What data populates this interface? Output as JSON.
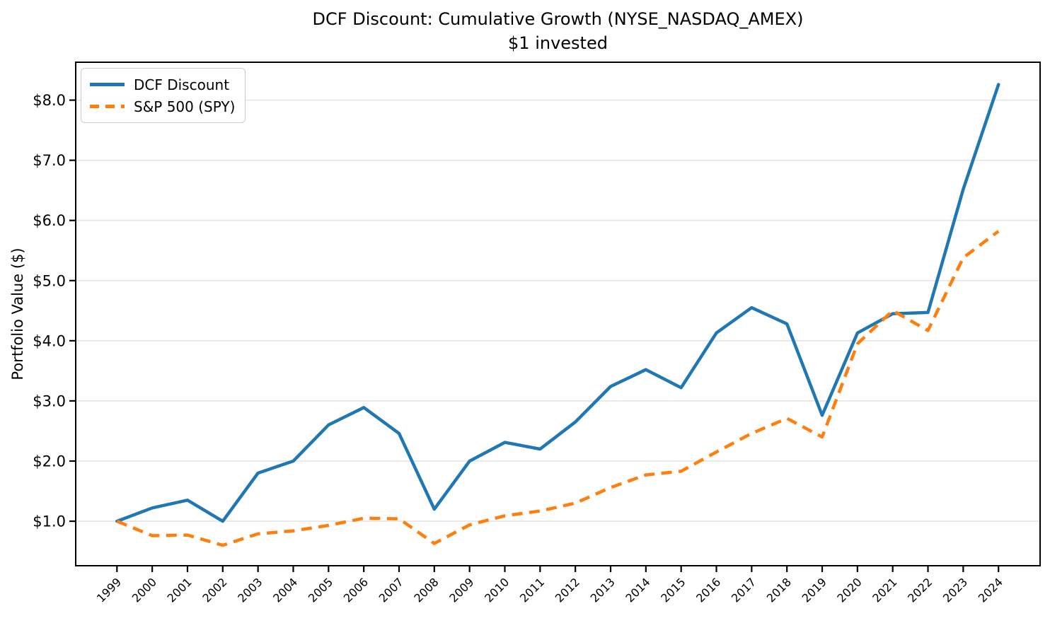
{
  "figure": {
    "title": "DCF Discount: Cumulative Growth (NYSE_NASDAQ_AMEX)",
    "subtitle": "$1 invested",
    "ylabel": "Portfolio Value ($)"
  },
  "legend": {
    "position": "upper left",
    "items": [
      {
        "label": "DCF Discount",
        "color": "#1f77b4",
        "style": "solid"
      },
      {
        "label": "S&P 500 (SPY)",
        "color": "#ff7f0e",
        "style": "dashed"
      }
    ]
  },
  "chart_data": {
    "type": "line",
    "title": "DCF Discount: Cumulative Growth (NYSE_NASDAQ_AMEX)",
    "subtitle": "$1 invested",
    "xlabel": "",
    "ylabel": "Portfolio Value ($)",
    "x": [
      1999,
      2000,
      2001,
      2002,
      2003,
      2004,
      2005,
      2006,
      2007,
      2008,
      2009,
      2010,
      2011,
      2012,
      2013,
      2014,
      2015,
      2016,
      2017,
      2018,
      2019,
      2020,
      2021,
      2022,
      2023,
      2024
    ],
    "series": [
      {
        "name": "DCF Discount",
        "color": "#1f77b4",
        "line_style": "solid",
        "values": [
          1.0,
          1.22,
          1.35,
          1.0,
          1.8,
          2.0,
          2.6,
          2.89,
          2.46,
          1.2,
          2.0,
          2.31,
          2.2,
          2.65,
          3.24,
          3.52,
          3.22,
          4.13,
          4.55,
          4.28,
          2.76,
          4.13,
          4.45,
          4.47,
          6.52,
          8.26
        ]
      },
      {
        "name": "S&P 500 (SPY)",
        "color": "#ff7f0e",
        "line_style": "dashed",
        "values": [
          1.0,
          0.76,
          0.77,
          0.6,
          0.79,
          0.84,
          0.93,
          1.05,
          1.04,
          0.63,
          0.94,
          1.09,
          1.17,
          1.3,
          1.56,
          1.77,
          1.83,
          2.15,
          2.46,
          2.71,
          2.4,
          3.95,
          4.5,
          4.17,
          5.38,
          5.82
        ]
      }
    ],
    "xlim": [
      1997.83,
      2025.18
    ],
    "ylim": [
      0.26,
      8.63
    ],
    "yticks": [
      1,
      2,
      3,
      4,
      5,
      6,
      7,
      8
    ],
    "ytick_labels": [
      "$1.0",
      "$2.0",
      "$3.0",
      "$4.0",
      "$5.0",
      "$6.0",
      "$7.0",
      "$8.0"
    ],
    "xtick_labels": [
      "1999",
      "2000",
      "2001",
      "2002",
      "2003",
      "2004",
      "2005",
      "2006",
      "2007",
      "2008",
      "2009",
      "2010",
      "2011",
      "2012",
      "2013",
      "2014",
      "2015",
      "2016",
      "2017",
      "2018",
      "2019",
      "2020",
      "2021",
      "2022",
      "2023",
      "2024"
    ],
    "grid": "horizontal",
    "legend_position": "upper left",
    "colors": {
      "dcf_line": "#1f77b4",
      "spy_line": "#ff7f0e",
      "grid": "#e5e5e5",
      "spine": "#000000",
      "background": "#ffffff",
      "text": "#000000"
    }
  }
}
